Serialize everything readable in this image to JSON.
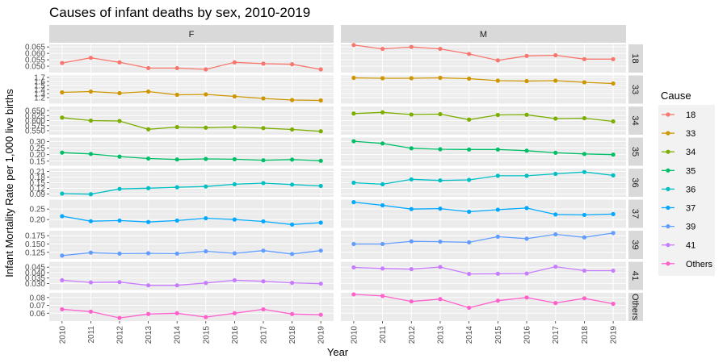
{
  "chart_data": {
    "type": "line",
    "title": "Causes of infant deaths by sex, 2010-2019",
    "xlabel": "Year",
    "ylabel": "Infant Mortality Rate per 1,000 live births",
    "x": [
      "2010",
      "2011",
      "2012",
      "2013",
      "2014",
      "2015",
      "2016",
      "2017",
      "2018",
      "2019"
    ],
    "facet_columns": [
      "F",
      "M"
    ],
    "legend_title": "Cause",
    "legend_position": "right",
    "grid": true,
    "rows": [
      {
        "cause": "18",
        "color": "#F8766D",
        "ylim": [
          0.045,
          0.067
        ],
        "ticks": [
          0.05,
          0.055,
          0.06,
          0.065
        ],
        "tick_labels": [
          "0.050",
          "0.055",
          "0.060",
          "0.065"
        ],
        "F": [
          0.0525,
          0.0565,
          0.053,
          0.0485,
          0.0485,
          0.0475,
          0.053,
          0.052,
          0.0515,
          0.0475
        ],
        "M": [
          0.0665,
          0.0635,
          0.065,
          0.0635,
          0.0595,
          0.0545,
          0.058,
          0.0585,
          0.0555,
          0.0555
        ]
      },
      {
        "cause": "33",
        "color": "#CD9600",
        "ylim": [
          1.05,
          1.75
        ],
        "ticks": [
          1.2,
          1.3,
          1.4,
          1.5,
          1.6,
          1.7
        ],
        "tick_labels": [
          "1.2",
          "1.3",
          "1.4",
          "1.5",
          "1.6",
          "1.7"
        ],
        "F": [
          1.33,
          1.35,
          1.31,
          1.35,
          1.27,
          1.28,
          1.23,
          1.18,
          1.14,
          1.13
        ],
        "M": [
          1.69,
          1.68,
          1.68,
          1.69,
          1.67,
          1.62,
          1.61,
          1.62,
          1.58,
          1.55
        ]
      },
      {
        "cause": "34",
        "color": "#7CAE00",
        "ylim": [
          0.53,
          0.67
        ],
        "ticks": [
          0.55,
          0.575,
          0.6,
          0.625,
          0.65
        ],
        "tick_labels": [
          "0.550",
          "0.575",
          "0.600",
          "0.625",
          "0.650"
        ],
        "F": [
          0.615,
          0.6,
          0.598,
          0.557,
          0.568,
          0.565,
          0.568,
          0.563,
          0.556,
          0.547
        ],
        "M": [
          0.635,
          0.641,
          0.63,
          0.632,
          0.605,
          0.628,
          0.629,
          0.61,
          0.612,
          0.596
        ]
      },
      {
        "cause": "35",
        "color": "#00BE67",
        "ylim": [
          0.115,
          0.33
        ],
        "ticks": [
          0.15,
          0.2,
          0.25,
          0.3
        ],
        "tick_labels": [
          "0.15",
          "0.20",
          "0.25",
          "0.30"
        ],
        "F": [
          0.215,
          0.205,
          0.185,
          0.17,
          0.163,
          0.167,
          0.165,
          0.157,
          0.162,
          0.153
        ],
        "M": [
          0.302,
          0.285,
          0.248,
          0.241,
          0.239,
          0.239,
          0.23,
          0.214,
          0.205,
          0.2
        ]
      },
      {
        "cause": "36",
        "color": "#00BFC4",
        "ylim": [
          0.075,
          0.225
        ],
        "ticks": [
          0.09,
          0.12,
          0.15,
          0.18,
          0.21
        ],
        "tick_labels": [
          "0.09",
          "0.12",
          "0.15",
          "0.18",
          "0.21"
        ],
        "F": [
          0.092,
          0.089,
          0.117,
          0.121,
          0.126,
          0.13,
          0.142,
          0.148,
          0.14,
          0.133
        ],
        "M": [
          0.15,
          0.142,
          0.168,
          0.162,
          0.165,
          0.187,
          0.187,
          0.197,
          0.207,
          0.189
        ]
      },
      {
        "cause": "37",
        "color": "#00A9FF",
        "ylim": [
          0.16,
          0.295
        ],
        "ticks": [
          0.2,
          0.25
        ],
        "tick_labels": [
          "0.20",
          "0.25"
        ],
        "F": [
          0.216,
          0.192,
          0.195,
          0.188,
          0.195,
          0.206,
          0.2,
          0.191,
          0.176,
          0.185
        ],
        "M": [
          0.283,
          0.268,
          0.25,
          0.252,
          0.237,
          0.247,
          0.255,
          0.224,
          0.222,
          0.226
        ]
      },
      {
        "cause": "39",
        "color": "#619CFF",
        "ylim": [
          0.105,
          0.19
        ],
        "ticks": [
          0.125,
          0.15,
          0.175
        ],
        "tick_labels": [
          "0.125",
          "0.150",
          "0.175"
        ],
        "F": [
          0.115,
          0.124,
          0.121,
          0.122,
          0.121,
          0.128,
          0.122,
          0.13,
          0.12,
          0.13
        ],
        "M": [
          0.15,
          0.15,
          0.158,
          0.157,
          0.155,
          0.172,
          0.166,
          0.179,
          0.17,
          0.183
        ]
      },
      {
        "cause": "41",
        "color": "#C77CFF",
        "ylim": [
          0.024,
          0.05
        ],
        "ticks": [
          0.03,
          0.035,
          0.04,
          0.045
        ],
        "tick_labels": [
          "0.030",
          "0.035",
          "0.040",
          "0.045"
        ],
        "F": [
          0.033,
          0.031,
          0.0313,
          0.0283,
          0.0283,
          0.0305,
          0.033,
          0.032,
          0.0306,
          0.0298
        ],
        "M": [
          0.0448,
          0.0438,
          0.0432,
          0.0452,
          0.0388,
          0.039,
          0.0392,
          0.0455,
          0.0418,
          0.0418
        ]
      },
      {
        "cause": "Others",
        "color": "#FF61CC",
        "ylim": [
          0.05,
          0.086
        ],
        "ticks": [
          0.06,
          0.07,
          0.08
        ],
        "tick_labels": [
          "0.06",
          "0.07",
          "0.08"
        ],
        "F": [
          0.065,
          0.062,
          0.054,
          0.059,
          0.06,
          0.055,
          0.06,
          0.065,
          0.059,
          0.058
        ],
        "M": [
          0.084,
          0.082,
          0.075,
          0.078,
          0.067,
          0.076,
          0.08,
          0.073,
          0.079,
          0.072
        ]
      }
    ]
  }
}
